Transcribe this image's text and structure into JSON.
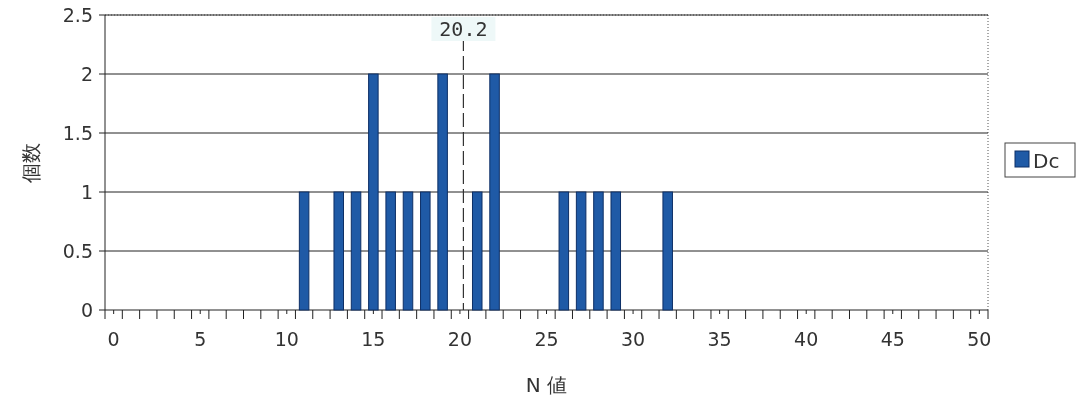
{
  "chart_data": {
    "type": "bar",
    "xlabel": "N 値",
    "ylabel": "個数",
    "x": [
      11,
      13,
      14,
      15,
      16,
      17,
      18,
      19,
      21,
      22,
      26,
      27,
      28,
      29,
      32
    ],
    "series": [
      {
        "name": "Dc",
        "color": "#1f5aa6",
        "values": [
          1,
          1,
          1,
          2,
          1,
          1,
          1,
          2,
          1,
          2,
          1,
          1,
          1,
          1,
          1
        ]
      }
    ],
    "xlim": [
      -0.5,
      50.5
    ],
    "xticks": [
      {
        "value": -0.5,
        "label": null
      },
      0,
      {
        "value": 0.5,
        "label": null
      },
      {
        "value": 1.5,
        "label": null
      },
      {
        "value": 2.5,
        "label": null
      },
      {
        "value": 3.5,
        "label": null
      },
      {
        "value": 4.5,
        "label": null
      },
      5,
      {
        "value": 5.5,
        "label": null
      },
      {
        "value": 6.5,
        "label": null
      },
      {
        "value": 7.5,
        "label": null
      },
      {
        "value": 8.5,
        "label": null
      },
      {
        "value": 9.5,
        "label": null
      },
      10,
      {
        "value": 10.5,
        "label": null
      },
      {
        "value": 11.5,
        "label": null
      },
      {
        "value": 12.5,
        "label": null
      },
      {
        "value": 13.5,
        "label": null
      },
      {
        "value": 14.5,
        "label": null
      },
      15,
      {
        "value": 15.5,
        "label": null
      },
      {
        "value": 16.5,
        "label": null
      },
      {
        "value": 17.5,
        "label": null
      },
      {
        "value": 18.5,
        "label": null
      },
      {
        "value": 19.5,
        "label": null
      },
      20,
      {
        "value": 20.5,
        "label": null
      },
      {
        "value": 21.5,
        "label": null
      },
      {
        "value": 22.5,
        "label": null
      },
      {
        "value": 23.5,
        "label": null
      },
      {
        "value": 24.5,
        "label": null
      },
      25,
      {
        "value": 25.5,
        "label": null
      },
      {
        "value": 26.5,
        "label": null
      },
      {
        "value": 27.5,
        "label": null
      },
      {
        "value": 28.5,
        "label": null
      },
      {
        "value": 29.5,
        "label": null
      },
      30,
      {
        "value": 30.5,
        "label": null
      },
      {
        "value": 31.5,
        "label": null
      },
      {
        "value": 32.5,
        "label": null
      },
      {
        "value": 33.5,
        "label": null
      },
      {
        "value": 34.5,
        "label": null
      },
      35,
      {
        "value": 35.5,
        "label": null
      },
      {
        "value": 36.5,
        "label": null
      },
      {
        "value": 37.5,
        "label": null
      },
      {
        "value": 38.5,
        "label": null
      },
      {
        "value": 39.5,
        "label": null
      },
      40,
      {
        "value": 40.5,
        "label": null
      },
      {
        "value": 41.5,
        "label": null
      },
      {
        "value": 42.5,
        "label": null
      },
      {
        "value": 43.5,
        "label": null
      },
      {
        "value": 44.5,
        "label": null
      },
      45,
      {
        "value": 45.5,
        "label": null
      },
      {
        "value": 46.5,
        "label": null
      },
      {
        "value": 47.5,
        "label": null
      },
      {
        "value": 48.5,
        "label": null
      },
      {
        "value": 49.5,
        "label": null
      },
      50,
      {
        "value": 50.5,
        "label": null
      }
    ],
    "ylim": [
      0,
      2.5
    ],
    "yticks": [
      0,
      0.5,
      1,
      1.5,
      2,
      2.5
    ],
    "grid": "y",
    "legend": "right",
    "ref_lines": [
      {
        "axis": "x",
        "value": 20.2,
        "label": "20.2",
        "line_style": "dashed"
      }
    ]
  }
}
